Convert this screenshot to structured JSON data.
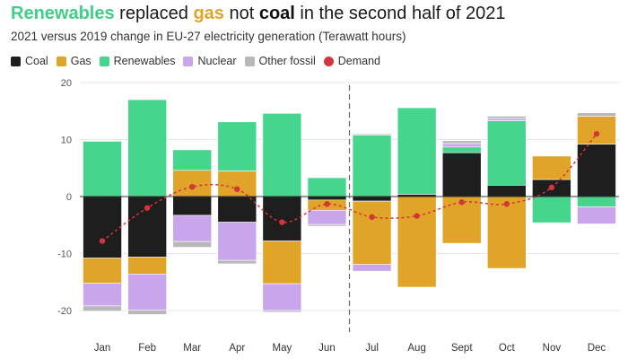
{
  "title": {
    "renewables": "Renewables",
    "part1": " replaced ",
    "gas": "gas",
    "part2": " not ",
    "coal": "coal",
    "part3": " in the second half of 2021"
  },
  "subtitle": "2021 versus 2019 change in EU-27 electricity generation (Terawatt hours)",
  "legend": [
    {
      "label": "Coal",
      "color": "#1e1e1e",
      "shape": "square"
    },
    {
      "label": "Gas",
      "color": "#e0a428",
      "shape": "square"
    },
    {
      "label": "Renewables",
      "color": "#45d58c",
      "shape": "square"
    },
    {
      "label": "Nuclear",
      "color": "#c9a5ec",
      "shape": "square"
    },
    {
      "label": "Other fossil",
      "color": "#b8b8b8",
      "shape": "square"
    },
    {
      "label": "Demand",
      "color": "#d4343b",
      "shape": "circle"
    }
  ],
  "chart_data": {
    "type": "bar",
    "stacked": true,
    "title": "Renewables replaced gas not coal in the second half of 2021",
    "subtitle": "2021 versus 2019 change in EU-27 electricity generation (Terawatt hours)",
    "xlabel": "",
    "ylabel": "",
    "ylim": [
      -22.5,
      20
    ],
    "yticks": [
      20,
      10,
      0,
      -10,
      -20
    ],
    "grid": true,
    "divider_after": "Jun",
    "categories": [
      "Jan",
      "Feb",
      "Mar",
      "Apr",
      "May",
      "Jun",
      "Jul",
      "Aug",
      "Sept",
      "Oct",
      "Nov",
      "Dec"
    ],
    "series": [
      {
        "name": "Coal",
        "color": "#1e1e1e",
        "values": [
          -10.8,
          -10.6,
          -3.3,
          -4.5,
          -7.8,
          -0.6,
          -0.8,
          0.4,
          7.7,
          2.0,
          3.0,
          9.2
        ]
      },
      {
        "name": "Gas",
        "color": "#e0a428",
        "values": [
          -4.4,
          -3.0,
          4.6,
          4.5,
          -7.5,
          -1.8,
          -11.1,
          -15.9,
          -8.2,
          -12.6,
          4.1,
          4.9
        ]
      },
      {
        "name": "Renewables",
        "color": "#45d58c",
        "values": [
          9.7,
          17.0,
          3.6,
          8.6,
          14.6,
          3.3,
          10.8,
          15.2,
          1.0,
          11.3,
          -4.6,
          -1.8
        ]
      },
      {
        "name": "Nuclear",
        "color": "#c9a5ec",
        "values": [
          -4.0,
          -6.3,
          -4.6,
          -6.7,
          -4.7,
          -2.5,
          -1.2,
          0.0,
          0.6,
          0.4,
          0.0,
          -3.0
        ]
      },
      {
        "name": "Other fossil",
        "color": "#b8b8b8",
        "values": [
          -0.9,
          -0.8,
          -1.0,
          -0.6,
          -0.3,
          -0.3,
          0.2,
          0.1,
          0.5,
          0.4,
          0.0,
          0.6
        ]
      },
      {
        "name": "Demand",
        "type": "line",
        "color": "#d4343b",
        "values": [
          -7.8,
          -2.0,
          1.7,
          1.3,
          -4.5,
          -1.3,
          -3.6,
          -3.4,
          -1.0,
          -1.3,
          1.6,
          11.0
        ]
      }
    ]
  }
}
